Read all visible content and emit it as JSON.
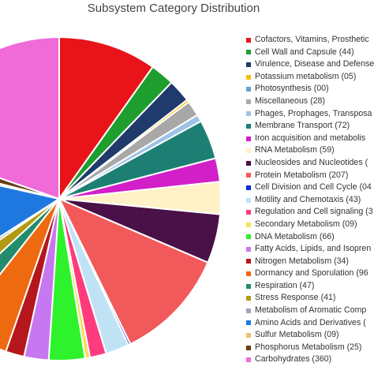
{
  "chart_data": {
    "type": "pie",
    "title": "Subsystem Category Distribution",
    "legend_position": "right",
    "slices": [
      {
        "label": "Cofactors, Vitamins, Prosthetic",
        "value": 180,
        "color": "#e8141a"
      },
      {
        "label": "Cell Wall and Capsule (44)",
        "value": 44,
        "color": "#1e9e2e"
      },
      {
        "label": "Virulence, Disease and Defense",
        "value": 42,
        "color": "#1f3a6b"
      },
      {
        "label": "Potassium metabolism (05)",
        "value": 5,
        "color": "#f2c200"
      },
      {
        "label": "Photosynthesis (00)",
        "value": 0,
        "color": "#6a9fcf"
      },
      {
        "label": "Miscellaneous (28)",
        "value": 28,
        "color": "#a8a8a8"
      },
      {
        "label": "Phages, Prophages, Transposa",
        "value": 13,
        "color": "#9dc3e6"
      },
      {
        "label": "Membrane Transport (72)",
        "value": 72,
        "color": "#1d7f74"
      },
      {
        "label": "Iron acquisition and metabolis",
        "value": 43,
        "color": "#d21fc8"
      },
      {
        "label": "RNA Metabolism (59)",
        "value": 59,
        "color": "#fff2c6"
      },
      {
        "label": "Nucleosides and Nucleotides (",
        "value": 90,
        "color": "#4a1048"
      },
      {
        "label": "Protein Metabolism (207)",
        "value": 207,
        "color": "#f2595a"
      },
      {
        "label": "Cell Division and Cell Cycle (04",
        "value": 4,
        "color": "#0b2fd8"
      },
      {
        "label": "Motility and Chemotaxis (43)",
        "value": 43,
        "color": "#bfe3f5"
      },
      {
        "label": "Regulation and Cell signaling (3",
        "value": 30,
        "color": "#ff3b7d"
      },
      {
        "label": "Secondary Metabolism (09)",
        "value": 9,
        "color": "#f5e15a"
      },
      {
        "label": "DNA Metabolism (66)",
        "value": 66,
        "color": "#2ef22b"
      },
      {
        "label": "Fatty Acids, Lipids, and Isopren",
        "value": 45,
        "color": "#c778f0"
      },
      {
        "label": "Nitrogen Metabolism (34)",
        "value": 34,
        "color": "#b5171c"
      },
      {
        "label": "Dormancy and Sporulation (96",
        "value": 96,
        "color": "#ee6a10"
      },
      {
        "label": "Respiration (47)",
        "value": 47,
        "color": "#238c6c"
      },
      {
        "label": "Stress Response (41)",
        "value": 41,
        "color": "#b39a12"
      },
      {
        "label": "Metabolism of Aromatic Comp",
        "value": 10,
        "color": "#9aa7b5"
      },
      {
        "label": "Amino Acids and Derivatives (",
        "value": 230,
        "color": "#1e78e0"
      },
      {
        "label": "Sulfur Metabolism (09)",
        "value": 9,
        "color": "#f0c06e"
      },
      {
        "label": "Phosphorus Metabolism (25)",
        "value": 25,
        "color": "#6a3d12"
      },
      {
        "label": "Carbohydrates (360)",
        "value": 360,
        "color": "#f06ad8"
      }
    ]
  }
}
